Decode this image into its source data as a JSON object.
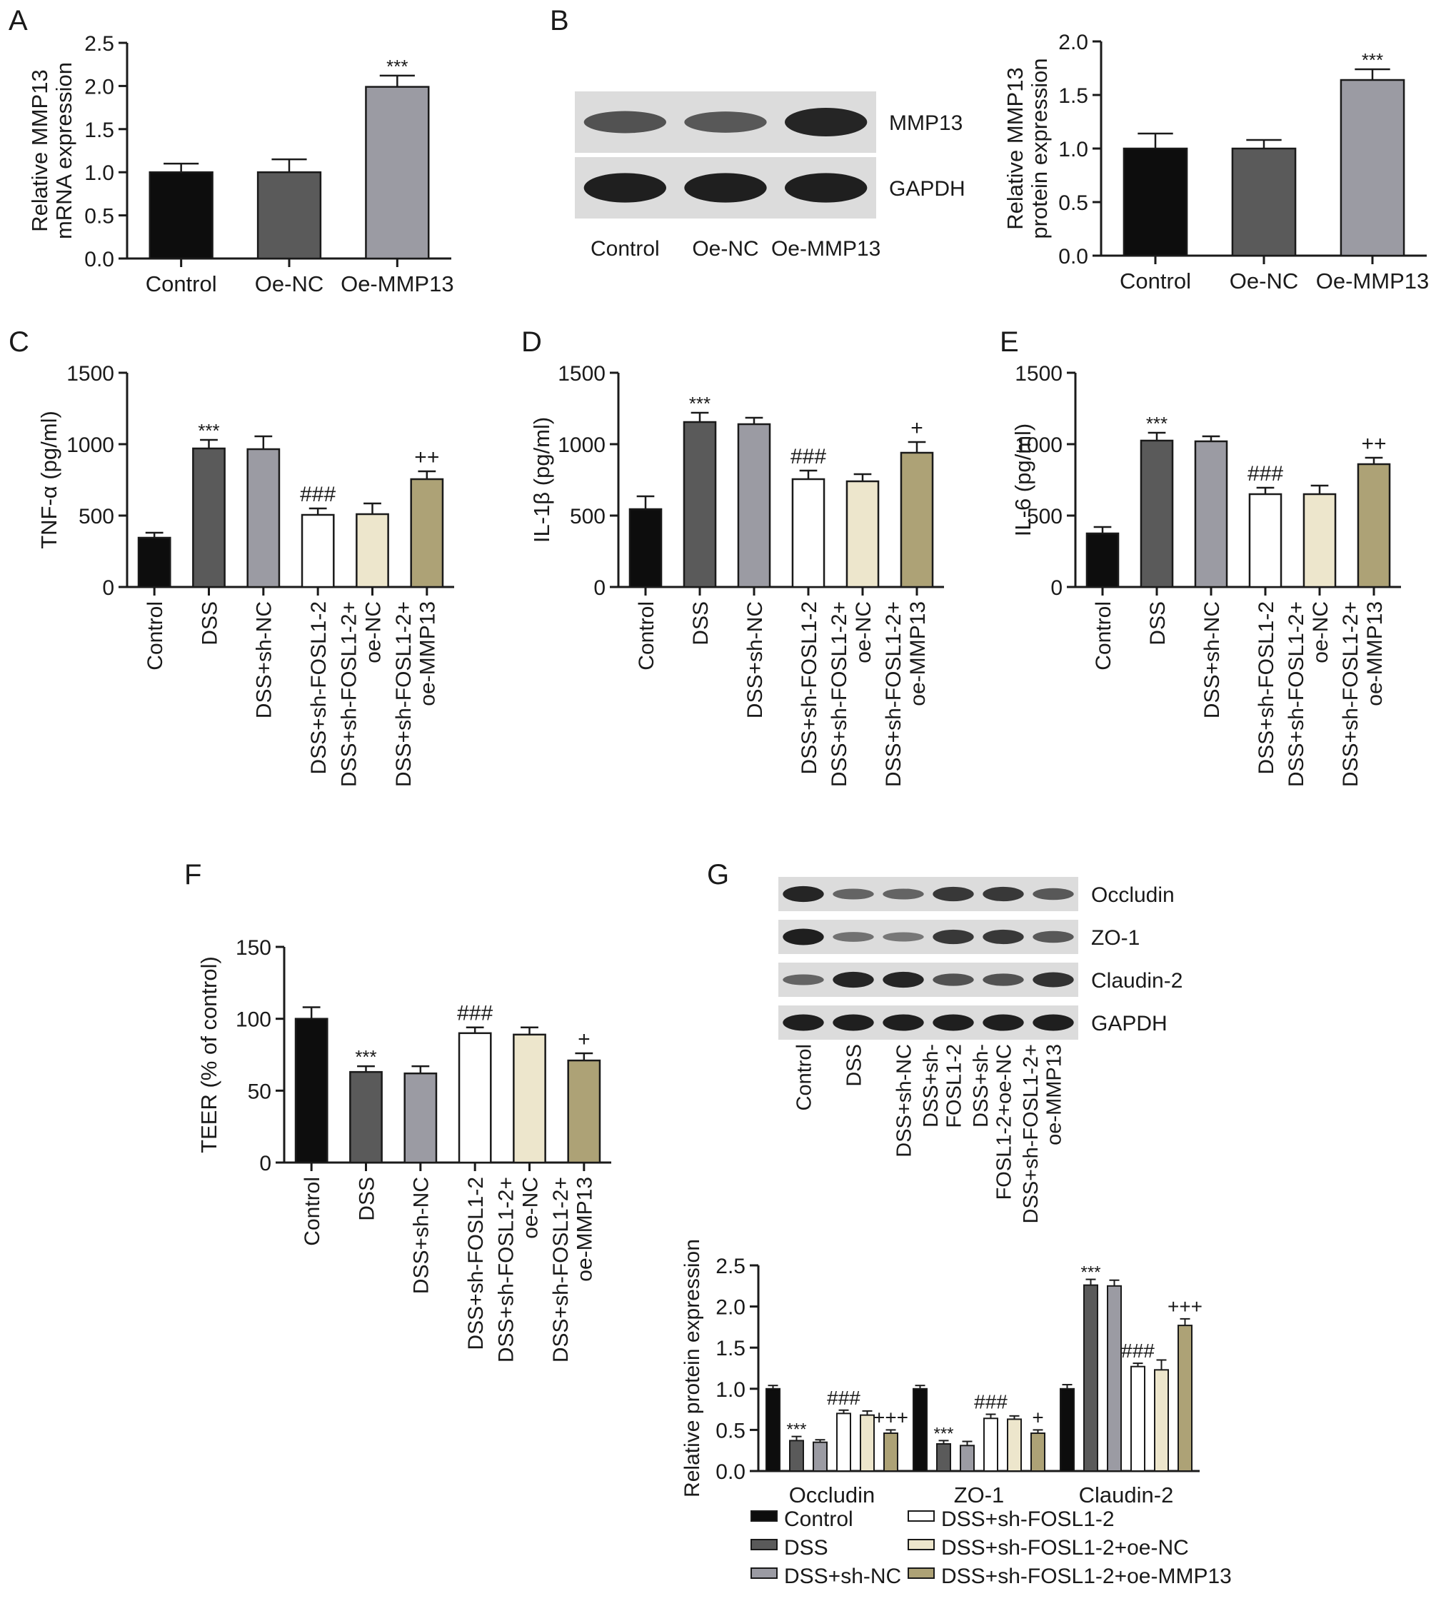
{
  "colors": {
    "Control": "#0d0d0d",
    "DSS": "#5a5a5a",
    "sh-NC": "#9b9ba3",
    "sh-FOSL": "#ffffff",
    "oe-NC": "#ede6cc",
    "oe-MMP13": "#ada276",
    "A": [
      "#0d0d0d",
      "#5a5a5a",
      "#9b9ba3"
    ]
  },
  "blotB": {
    "lanes": [
      "Control",
      "Oe-NC",
      "Oe-MMP13"
    ],
    "rows": [
      {
        "label": "MMP13",
        "intensities": [
          0.6,
          0.55,
          0.95
        ]
      },
      {
        "label": "GAPDH",
        "intensities": [
          1,
          1,
          1
        ]
      }
    ]
  },
  "blotG": {
    "lanes": [
      "Control",
      "DSS",
      "DSS+sh-NC",
      "DSS+sh-\nFOSL1-2",
      "DSS+sh-\nFOSL1-2+oe-NC",
      "DSS+sh-FOSL1-2+\noe-MMP13"
    ],
    "rows": [
      {
        "label": "Occludin",
        "intensities": [
          0.95,
          0.45,
          0.45,
          0.8,
          0.8,
          0.55
        ]
      },
      {
        "label": "ZO-1",
        "intensities": [
          1,
          0.35,
          0.3,
          0.8,
          0.8,
          0.55
        ]
      },
      {
        "label": "Claudin-2",
        "intensities": [
          0.45,
          0.95,
          0.95,
          0.6,
          0.6,
          0.85
        ]
      },
      {
        "label": "GAPDH",
        "intensities": [
          1,
          1,
          1,
          1,
          1,
          1
        ]
      }
    ]
  },
  "chart_data": [
    {
      "panel": "A",
      "type": "bar",
      "categories": [
        "Control",
        "Oe-NC",
        "Oe-MMP13"
      ],
      "values": [
        1.0,
        1.0,
        1.99
      ],
      "errors": [
        0.1,
        0.15,
        0.13
      ],
      "annotations": [
        "",
        "",
        "***"
      ],
      "ylabel": [
        "Relative MMP13",
        "mRNA expression"
      ],
      "ylim": [
        0,
        2.5
      ],
      "yticks": [
        0.0,
        0.5,
        1.0,
        1.5,
        2.0,
        2.5
      ],
      "ytick_labels": [
        "0.0",
        "0.5",
        "1.0",
        "1.5",
        "2.0",
        "2.5"
      ]
    },
    {
      "panel": "B",
      "type": "bar",
      "categories": [
        "Control",
        "Oe-NC",
        "Oe-MMP13"
      ],
      "values": [
        1.0,
        1.0,
        1.64
      ],
      "errors": [
        0.14,
        0.08,
        0.1
      ],
      "annotations": [
        "",
        "",
        "***"
      ],
      "ylabel": [
        "Relative MMP13",
        "protein expression"
      ],
      "ylim": [
        0,
        2.0
      ],
      "yticks": [
        0.0,
        0.5,
        1.0,
        1.5,
        2.0
      ],
      "ytick_labels": [
        "0.0",
        "0.5",
        "1.0",
        "1.5",
        "2.0"
      ]
    },
    {
      "panel": "C",
      "type": "bar",
      "categories": [
        "Control",
        "DSS",
        "DSS+sh-NC",
        "DSS+sh-FOSL1-2",
        "DSS+sh-FOSL1-2+\noe-NC",
        "DSS+sh-FOSL1-2+\noe-MMP13"
      ],
      "values": [
        345,
        970,
        965,
        505,
        510,
        755
      ],
      "errors": [
        35,
        60,
        90,
        45,
        75,
        55
      ],
      "annotations": [
        "",
        "***",
        "",
        "###",
        "",
        "++"
      ],
      "ylabel": [
        "TNF-α (pg/ml)"
      ],
      "ylim": [
        0,
        1500
      ],
      "yticks": [
        0,
        500,
        1000,
        1500
      ],
      "ytick_labels": [
        "0",
        "500",
        "1000",
        "1500"
      ]
    },
    {
      "panel": "D",
      "type": "bar",
      "categories": [
        "Control",
        "DSS",
        "DSS+sh-NC",
        "DSS+sh-FOSL1-2",
        "DSS+sh-FOSL1-2+\noe-NC",
        "DSS+sh-FOSL1-2+\noe-MMP13"
      ],
      "values": [
        545,
        1155,
        1140,
        755,
        740,
        940
      ],
      "errors": [
        90,
        65,
        45,
        60,
        50,
        75
      ],
      "annotations": [
        "",
        "***",
        "",
        "###",
        "",
        "+"
      ],
      "ylabel": [
        "IL-1β (pg/ml)"
      ],
      "ylim": [
        0,
        1500
      ],
      "yticks": [
        0,
        500,
        1000,
        1500
      ],
      "ytick_labels": [
        "0",
        "500",
        "1000",
        "1500"
      ]
    },
    {
      "panel": "E",
      "type": "bar",
      "categories": [
        "Control",
        "DSS",
        "DSS+sh-NC",
        "DSS+sh-FOSL1-2",
        "DSS+sh-FOSL1-2+\noe-NC",
        "DSS+sh-FOSL1-2+\noe-MMP13"
      ],
      "values": [
        375,
        1025,
        1020,
        650,
        650,
        860
      ],
      "errors": [
        45,
        55,
        35,
        45,
        60,
        45
      ],
      "annotations": [
        "",
        "***",
        "",
        "###",
        "",
        "++"
      ],
      "ylabel": [
        "IL-6 (pg/ml)"
      ],
      "ylim": [
        0,
        1500
      ],
      "yticks": [
        0,
        500,
        1000,
        1500
      ],
      "ytick_labels": [
        "0",
        "500",
        "1000",
        "1500"
      ]
    },
    {
      "panel": "F",
      "type": "bar",
      "categories": [
        "Control",
        "DSS",
        "DSS+sh-NC",
        "DSS+sh-FOSL1-2",
        "DSS+sh-FOSL1-2+\noe-NC",
        "DSS+sh-FOSL1-2+\noe-MMP13"
      ],
      "values": [
        100,
        63,
        62,
        90,
        89,
        71
      ],
      "errors": [
        8,
        4,
        5,
        4,
        5,
        5
      ],
      "annotations": [
        "",
        "***",
        "",
        "###",
        "",
        "+"
      ],
      "ylabel": [
        "TEER (% of control)"
      ],
      "ylim": [
        0,
        150
      ],
      "yticks": [
        0,
        50,
        100,
        150
      ],
      "ytick_labels": [
        "0",
        "50",
        "100",
        "150"
      ]
    },
    {
      "panel": "G",
      "type": "bar",
      "categories": [
        "Occludin",
        "ZO-1",
        "Claudin-2"
      ],
      "series": [
        {
          "name": "Control",
          "values": [
            1.0,
            1.0,
            1.0
          ],
          "errors": [
            0.04,
            0.04,
            0.05
          ],
          "annotations": [
            "",
            "",
            ""
          ]
        },
        {
          "name": "DSS",
          "values": [
            0.37,
            0.33,
            2.26
          ],
          "errors": [
            0.05,
            0.04,
            0.07
          ],
          "annotations": [
            "***",
            "***",
            "***"
          ]
        },
        {
          "name": "DSS+sh-NC",
          "values": [
            0.35,
            0.31,
            2.25
          ],
          "errors": [
            0.03,
            0.05,
            0.07
          ],
          "annotations": [
            "",
            "",
            ""
          ]
        },
        {
          "name": "DSS+sh-FOSL1-2",
          "values": [
            0.7,
            0.64,
            1.27
          ],
          "errors": [
            0.04,
            0.05,
            0.04
          ],
          "annotations": [
            "###",
            "###",
            "###"
          ]
        },
        {
          "name": "DSS+sh-FOSL1-2+oe-NC",
          "values": [
            0.68,
            0.63,
            1.23
          ],
          "errors": [
            0.05,
            0.04,
            0.12
          ],
          "annotations": [
            "",
            "",
            ""
          ]
        },
        {
          "name": "DSS+sh-FOSL1-2+oe-MMP13",
          "values": [
            0.46,
            0.46,
            1.77
          ],
          "errors": [
            0.04,
            0.04,
            0.08
          ],
          "annotations": [
            "+++",
            "+",
            "+++"
          ]
        }
      ],
      "ylabel": [
        "Relative protein expression"
      ],
      "ylim": [
        0,
        2.5
      ],
      "yticks": [
        0.0,
        0.5,
        1.0,
        1.5,
        2.0,
        2.5
      ],
      "ytick_labels": [
        "0.0",
        "0.5",
        "1.0",
        "1.5",
        "2.0",
        "2.5"
      ],
      "legend": "bottom"
    }
  ],
  "panel_letters": [
    "A",
    "B",
    "C",
    "D",
    "E",
    "F",
    "G"
  ]
}
